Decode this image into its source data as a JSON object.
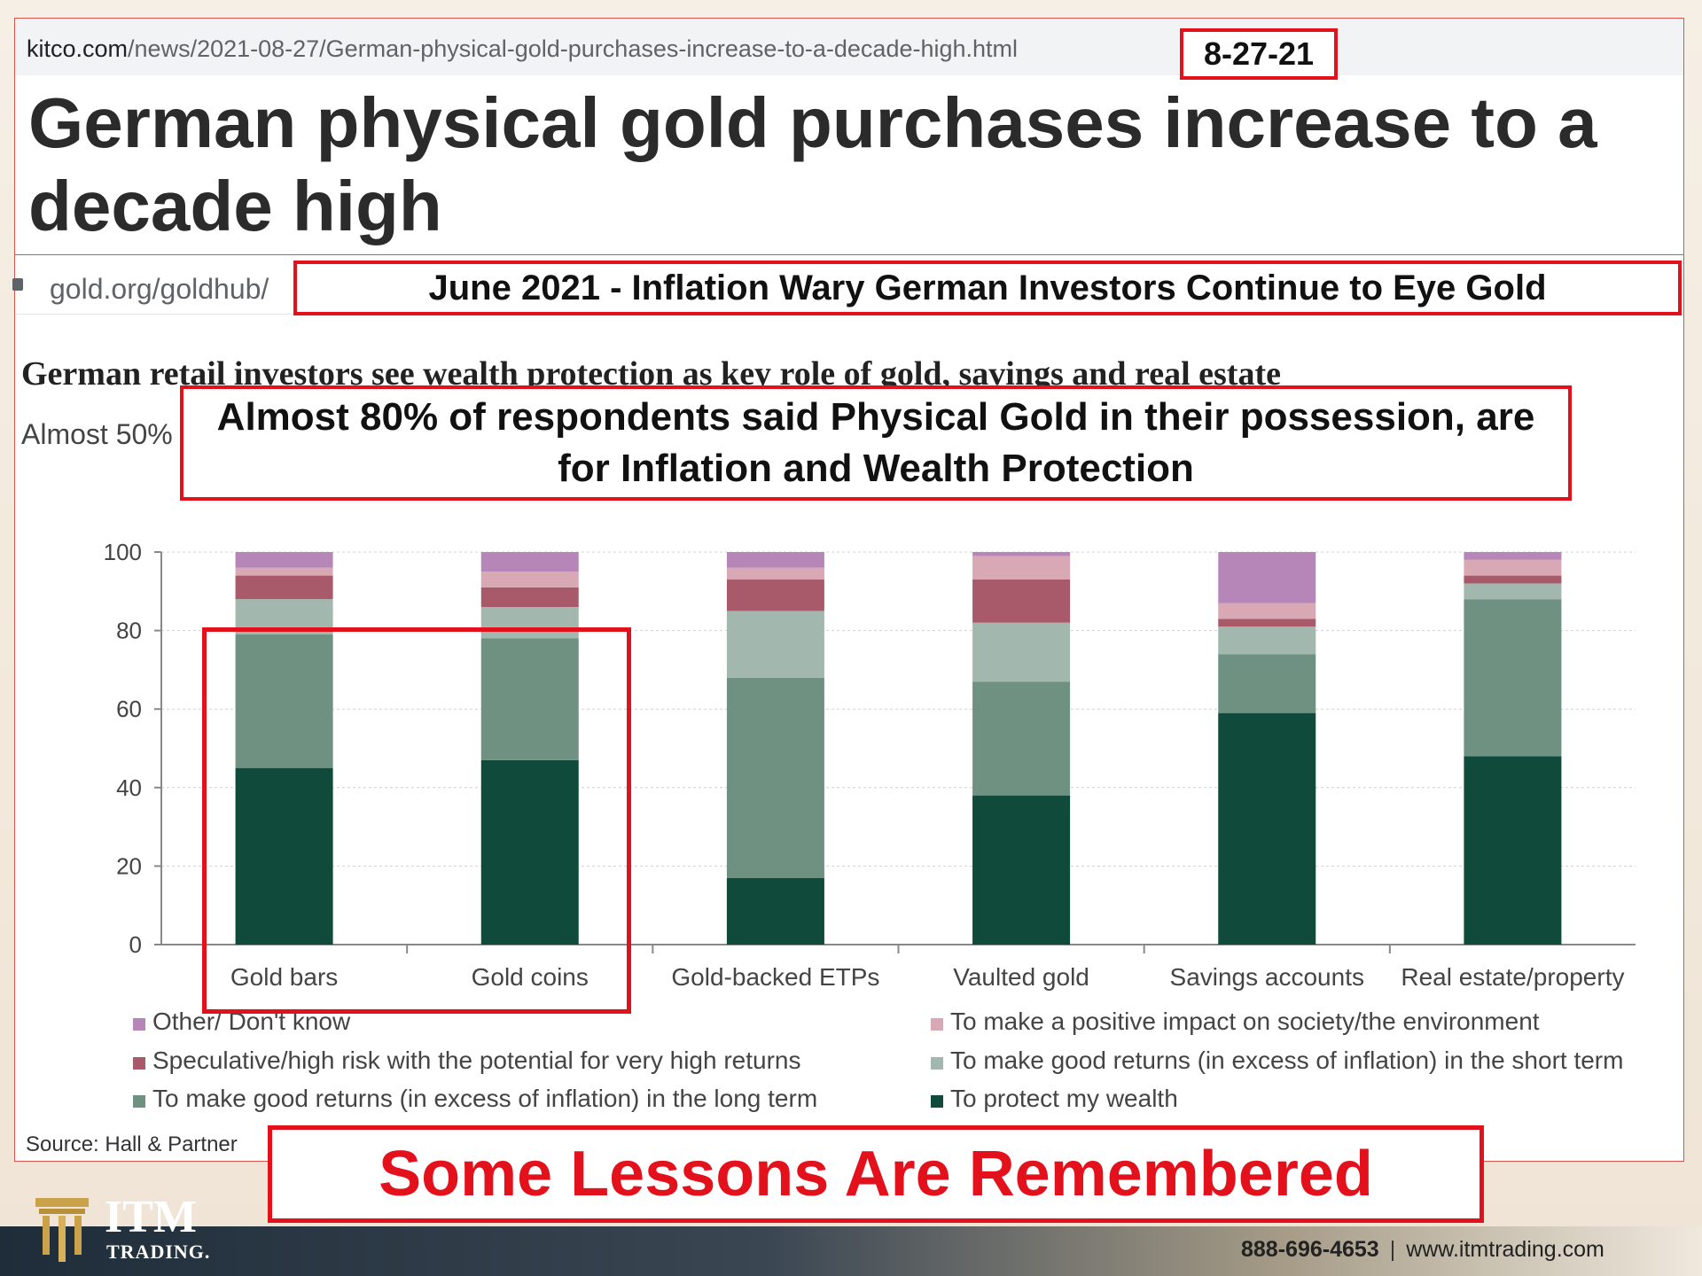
{
  "kitco": {
    "url_host": "kitco.com",
    "url_path": "/news/2021-08-27/German-physical-gold-purchases-increase-to-a-decade-high.html",
    "date_badge": "8-27-21",
    "title": "German physical gold purchases increase to a decade high"
  },
  "goldorg": {
    "url": "gold.org/goldhub/",
    "june_headline": "June 2021 - Inflation Wary German Investors Continue to Eye Gold"
  },
  "callout": "Almost 80% of respondents said Physical Gold in their possession, are for Inflation and Wealth Protection",
  "lessons": "Some Lessons Are Remembered",
  "footer": {
    "brand": "ITM",
    "brand_sub": "TRADING.",
    "phone": "888-696-4653",
    "separator": "|",
    "website": "www.itmtrading.com"
  },
  "chart_data": {
    "type": "bar",
    "stacked": true,
    "title": "German retail investors see wealth protection as key role of gold, savings and real estate",
    "subtitle": "Almost 50%",
    "source": "Source: Hall & Partner",
    "ylim": [
      0,
      100
    ],
    "yticks": [
      0,
      20,
      40,
      60,
      80,
      100
    ],
    "grid": true,
    "categories": [
      "Gold bars",
      "Gold coins",
      "Gold-backed ETPs",
      "Vaulted gold",
      "Savings accounts",
      "Real estate/property"
    ],
    "series": [
      {
        "name": "To protect my wealth",
        "color": "#0f4a3a",
        "values": [
          45,
          47,
          17,
          38,
          59,
          48
        ]
      },
      {
        "name": "To make good returns (in excess of inflation) in the long term",
        "color": "#6e9182",
        "values": [
          34,
          31,
          51,
          29,
          15,
          40
        ]
      },
      {
        "name": "To make good returns (in excess of inflation) in the short term",
        "color": "#a2b8ae",
        "values": [
          9,
          8,
          17,
          15,
          7,
          4
        ]
      },
      {
        "name": "Speculative/high risk with the potential for very high returns",
        "color": "#a85a6a",
        "values": [
          6,
          5,
          8,
          11,
          2,
          2
        ]
      },
      {
        "name": "To make a positive impact on society/the environment",
        "color": "#d8a8b4",
        "values": [
          2,
          4,
          3,
          6,
          4,
          4
        ]
      },
      {
        "name": "Other/ Don't know",
        "color": "#b686b8",
        "values": [
          4,
          5,
          4,
          1,
          13,
          2
        ]
      }
    ],
    "legend": [
      {
        "series": 5,
        "label": "Other/ Don't know"
      },
      {
        "series": 4,
        "label": "To make a positive impact on society/the environment"
      },
      {
        "series": 3,
        "label": "Speculative/high risk with the potential for very high returns"
      },
      {
        "series": 2,
        "label": "To make good returns (in excess of inflation) in the short term"
      },
      {
        "series": 1,
        "label": "To make good returns (in excess of inflation) in the long term"
      },
      {
        "series": 0,
        "label": "To protect my wealth"
      }
    ]
  }
}
